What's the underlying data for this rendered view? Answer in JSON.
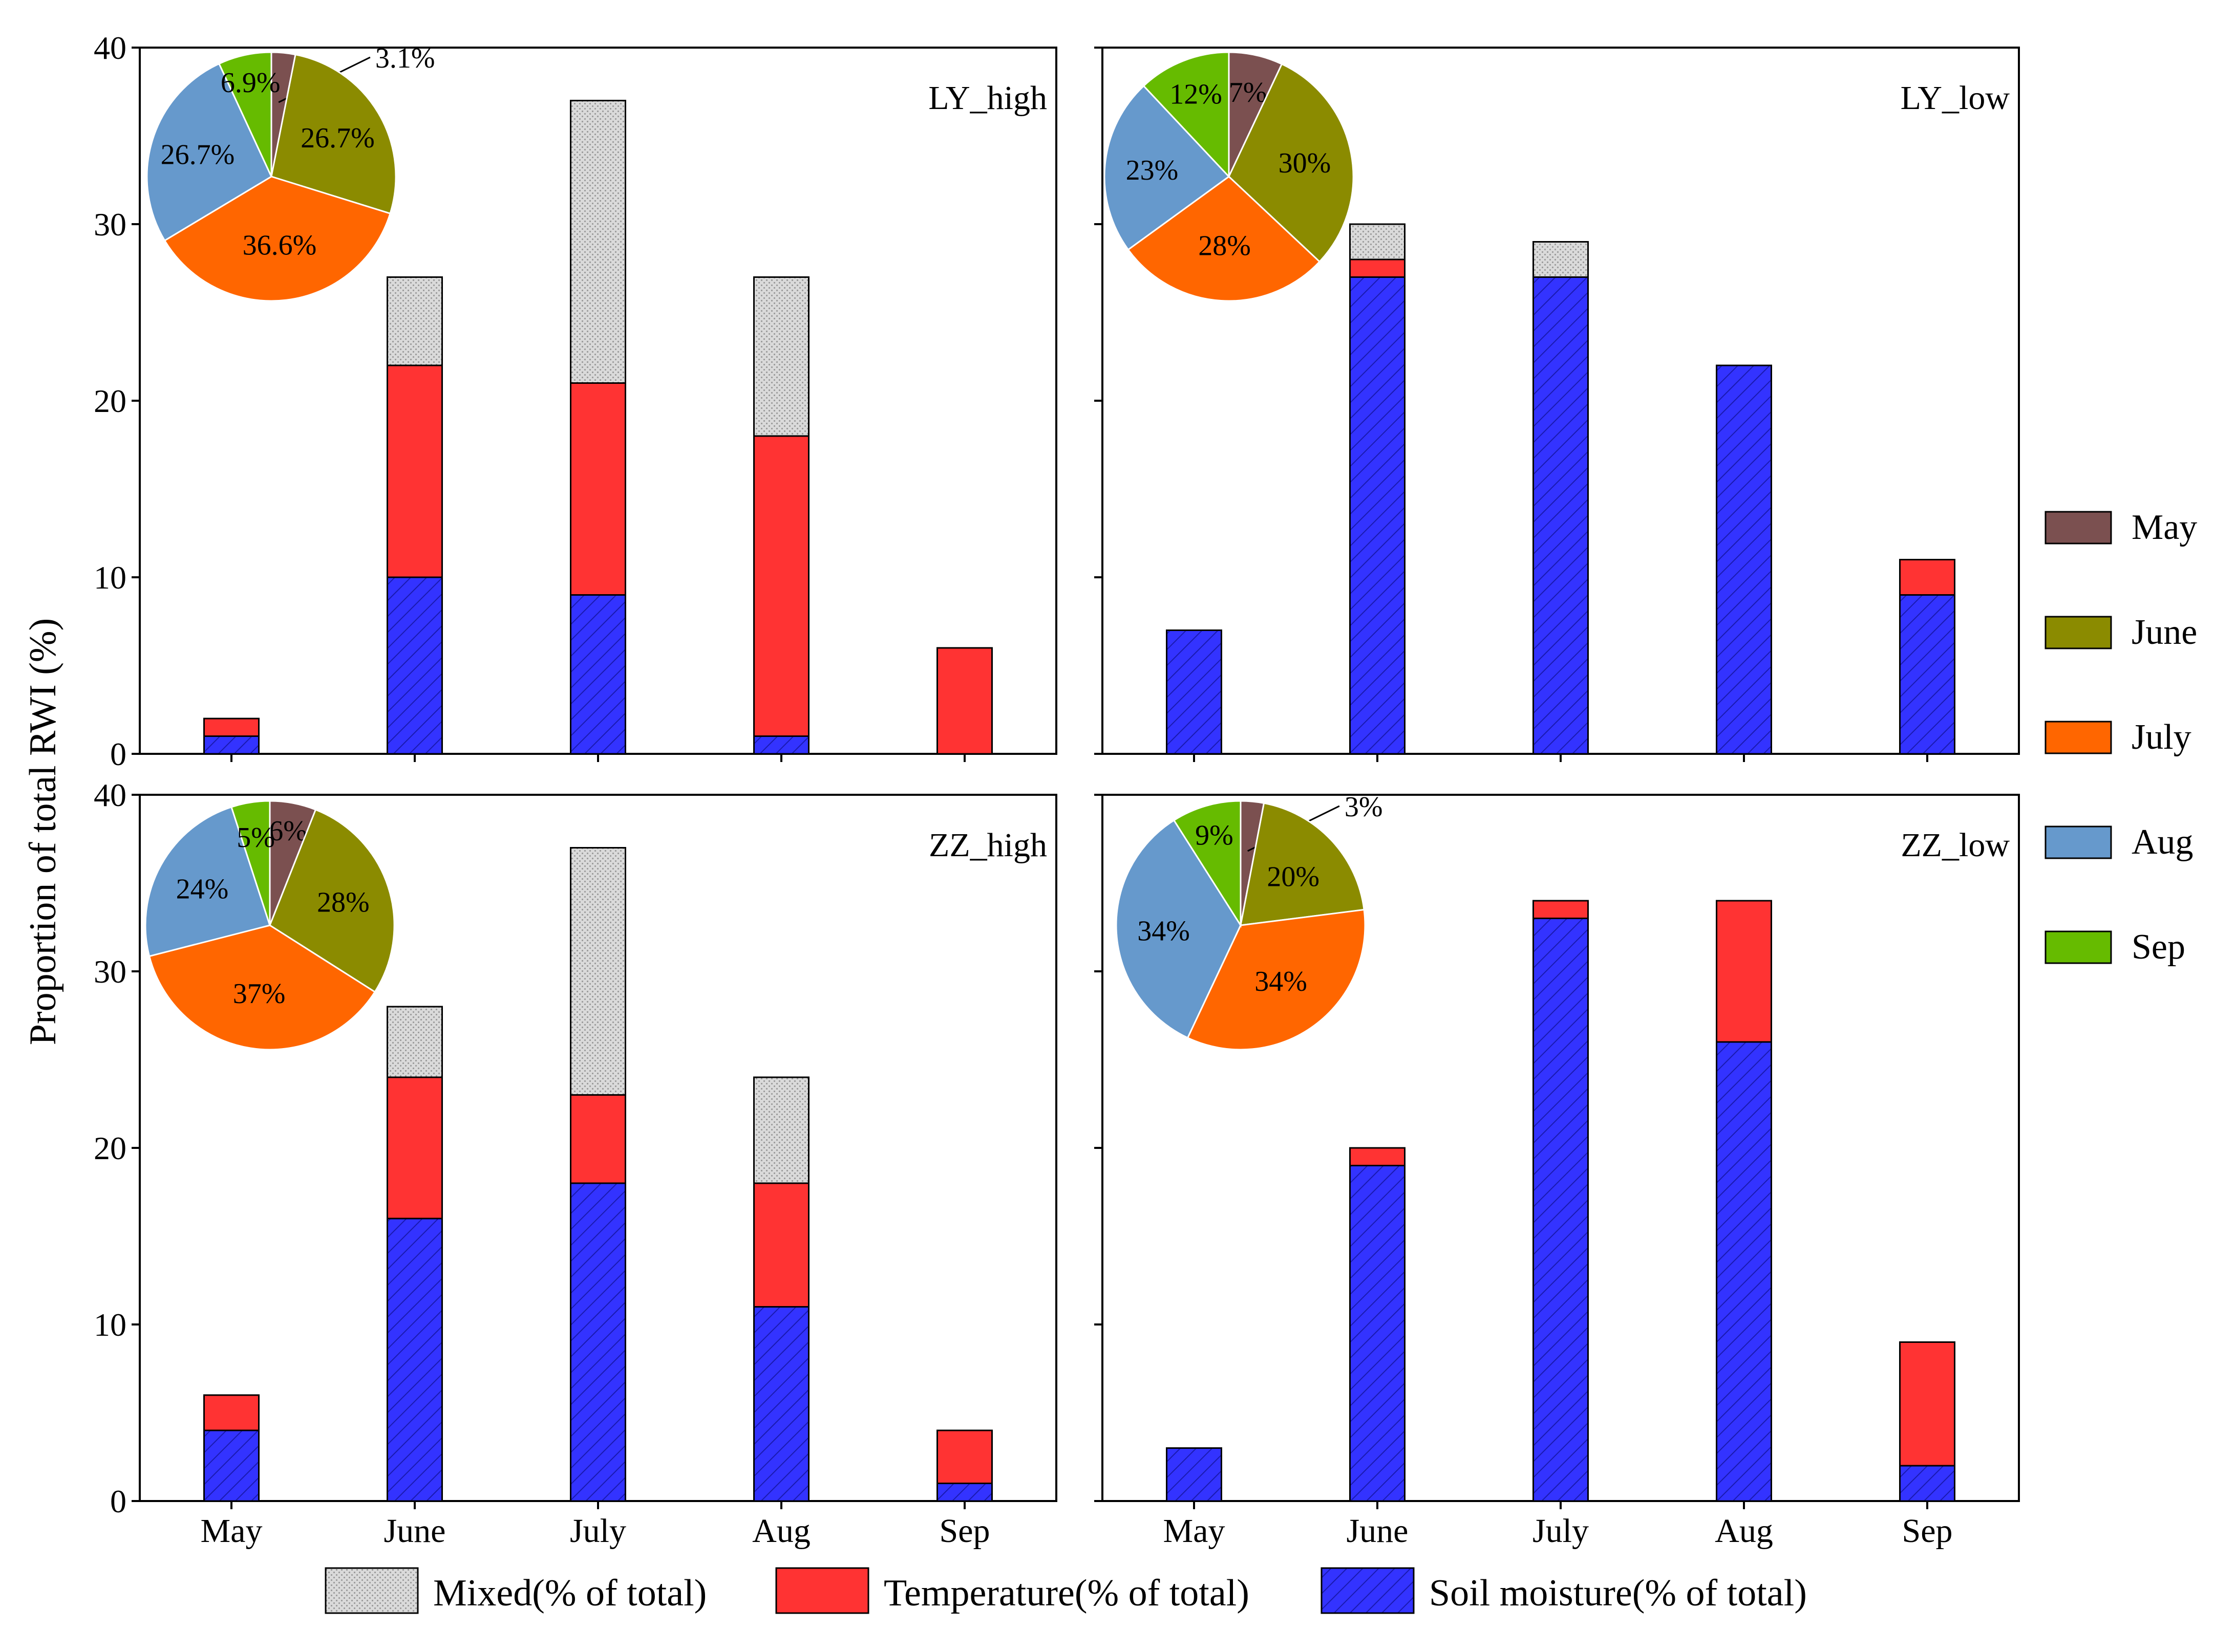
{
  "figure": {
    "ylabel": "Proportion of total RWI (%)",
    "month_legend": [
      {
        "label": "May",
        "color": "#7b5050"
      },
      {
        "label": "June",
        "color": "#8b8b00"
      },
      {
        "label": "July",
        "color": "#ff6600"
      },
      {
        "label": "Aug",
        "color": "#6699cc"
      },
      {
        "label": "Sep",
        "color": "#66bb00"
      }
    ],
    "factor_legend": [
      {
        "label": "Mixed(% of total)",
        "key": "mixed",
        "color": "#d3d3d3"
      },
      {
        "label": "Temperature(% of total)",
        "key": "temperature",
        "color": "#ff3333"
      },
      {
        "label": "Soil moisture(% of total)",
        "key": "soil",
        "color": "#3333ff"
      }
    ]
  },
  "chart_data": [
    {
      "type": "bar",
      "stacked": true,
      "title": "LY_high",
      "categories": [
        "May",
        "June",
        "July",
        "Aug",
        "Sep"
      ],
      "ylim": [
        0,
        40
      ],
      "yticks": [
        0,
        10,
        20,
        30,
        40
      ],
      "series": [
        {
          "name": "Soil moisture(% of total)",
          "key": "soil",
          "values": [
            1,
            10,
            9,
            1,
            0
          ]
        },
        {
          "name": "Temperature(% of total)",
          "key": "temperature",
          "values": [
            1,
            12,
            12,
            17,
            6
          ]
        },
        {
          "name": "Mixed(% of total)",
          "key": "mixed",
          "values": [
            0,
            5,
            16,
            9,
            0
          ]
        }
      ],
      "pie": {
        "slices": [
          {
            "name": "May",
            "value": 3.1,
            "label": "3.1%"
          },
          {
            "name": "June",
            "value": 26.7,
            "label": "26.7%"
          },
          {
            "name": "July",
            "value": 36.6,
            "label": "36.6%"
          },
          {
            "name": "Aug",
            "value": 26.7,
            "label": "26.7%"
          },
          {
            "name": "Sep",
            "value": 6.9,
            "label": "6.9%"
          }
        ]
      }
    },
    {
      "type": "bar",
      "stacked": true,
      "title": "LY_low",
      "categories": [
        "May",
        "June",
        "July",
        "Aug",
        "Sep"
      ],
      "ylim": [
        0,
        40
      ],
      "yticks": [
        0,
        10,
        20,
        30,
        40
      ],
      "series": [
        {
          "name": "Soil moisture(% of total)",
          "key": "soil",
          "values": [
            7,
            27,
            27,
            22,
            9
          ]
        },
        {
          "name": "Temperature(% of total)",
          "key": "temperature",
          "values": [
            0,
            1,
            0,
            0,
            2
          ]
        },
        {
          "name": "Mixed(% of total)",
          "key": "mixed",
          "values": [
            0,
            2,
            2,
            0,
            0
          ]
        }
      ],
      "pie": {
        "slices": [
          {
            "name": "May",
            "value": 7,
            "label": "7%"
          },
          {
            "name": "June",
            "value": 30,
            "label": "30%"
          },
          {
            "name": "July",
            "value": 28,
            "label": "28%"
          },
          {
            "name": "Aug",
            "value": 23,
            "label": "23%"
          },
          {
            "name": "Sep",
            "value": 12,
            "label": "12%"
          }
        ]
      }
    },
    {
      "type": "bar",
      "stacked": true,
      "title": "ZZ_high",
      "categories": [
        "May",
        "June",
        "July",
        "Aug",
        "Sep"
      ],
      "ylim": [
        0,
        40
      ],
      "yticks": [
        0,
        10,
        20,
        30,
        40
      ],
      "series": [
        {
          "name": "Soil moisture(% of total)",
          "key": "soil",
          "values": [
            4,
            16,
            18,
            11,
            1
          ]
        },
        {
          "name": "Temperature(% of total)",
          "key": "temperature",
          "values": [
            2,
            8,
            5,
            7,
            3
          ]
        },
        {
          "name": "Mixed(% of total)",
          "key": "mixed",
          "values": [
            0,
            4,
            14,
            6,
            0
          ]
        }
      ],
      "pie": {
        "slices": [
          {
            "name": "May",
            "value": 6,
            "label": "6%"
          },
          {
            "name": "June",
            "value": 28,
            "label": "28%"
          },
          {
            "name": "July",
            "value": 37,
            "label": "37%"
          },
          {
            "name": "Aug",
            "value": 24,
            "label": "24%"
          },
          {
            "name": "Sep",
            "value": 5,
            "label": "5%"
          }
        ]
      }
    },
    {
      "type": "bar",
      "stacked": true,
      "title": "ZZ_low",
      "categories": [
        "May",
        "June",
        "July",
        "Aug",
        "Sep"
      ],
      "ylim": [
        0,
        40
      ],
      "yticks": [
        0,
        10,
        20,
        30,
        40
      ],
      "series": [
        {
          "name": "Soil moisture(% of total)",
          "key": "soil",
          "values": [
            3,
            19,
            33,
            26,
            2
          ]
        },
        {
          "name": "Temperature(% of total)",
          "key": "temperature",
          "values": [
            0,
            1,
            1,
            8,
            7
          ]
        },
        {
          "name": "Mixed(% of total)",
          "key": "mixed",
          "values": [
            0,
            0,
            0,
            0,
            0
          ]
        }
      ],
      "pie": {
        "slices": [
          {
            "name": "May",
            "value": 3,
            "label": "3%"
          },
          {
            "name": "June",
            "value": 20,
            "label": "20%"
          },
          {
            "name": "July",
            "value": 34,
            "label": "34%"
          },
          {
            "name": "Aug",
            "value": 34,
            "label": "34%"
          },
          {
            "name": "Sep",
            "value": 9,
            "label": "9%"
          }
        ]
      }
    }
  ]
}
